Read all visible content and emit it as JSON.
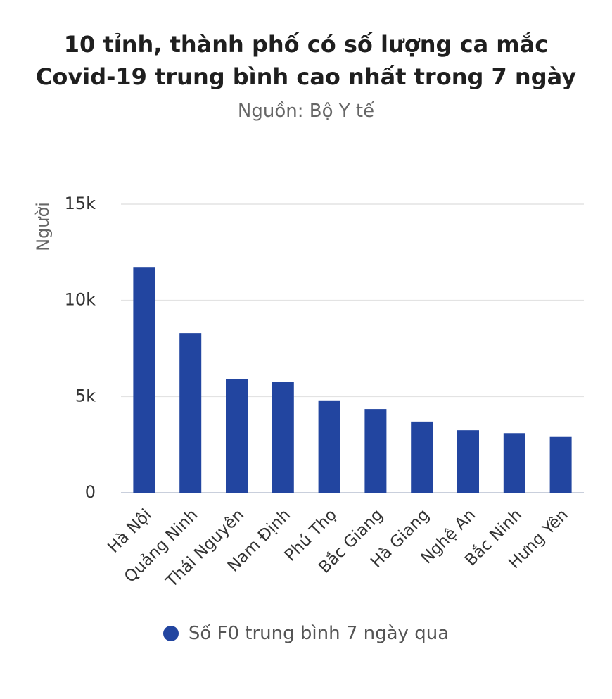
{
  "chart_data": {
    "type": "bar",
    "title_lines": [
      "10 tỉnh, thành phố có số lượng ca mắc",
      "Covid-19 trung bình cao nhất trong 7 ngày"
    ],
    "subtitle": "Nguồn: Bộ Y tế",
    "ylabel": "Người",
    "xlabel": "",
    "categories": [
      "Hà Nội",
      "Quảng Ninh",
      "Thái Nguyên",
      "Nam Định",
      "Phú Thọ",
      "Bắc Giang",
      "Hà Giang",
      "Nghệ An",
      "Bắc Ninh",
      "Hưng Yên"
    ],
    "series": [
      {
        "name": "Số F0 trung bình 7 ngày qua",
        "color": "#2245a0",
        "values": [
          11700,
          8300,
          5900,
          5750,
          4800,
          4350,
          3700,
          3250,
          3100,
          2900
        ]
      }
    ],
    "ylim": [
      0,
      15000
    ],
    "yticks": [
      0,
      5000,
      10000,
      15000
    ],
    "ytick_labels": [
      "0",
      "5k",
      "10k",
      "15k"
    ],
    "grid": true,
    "legend_position": "bottom"
  }
}
